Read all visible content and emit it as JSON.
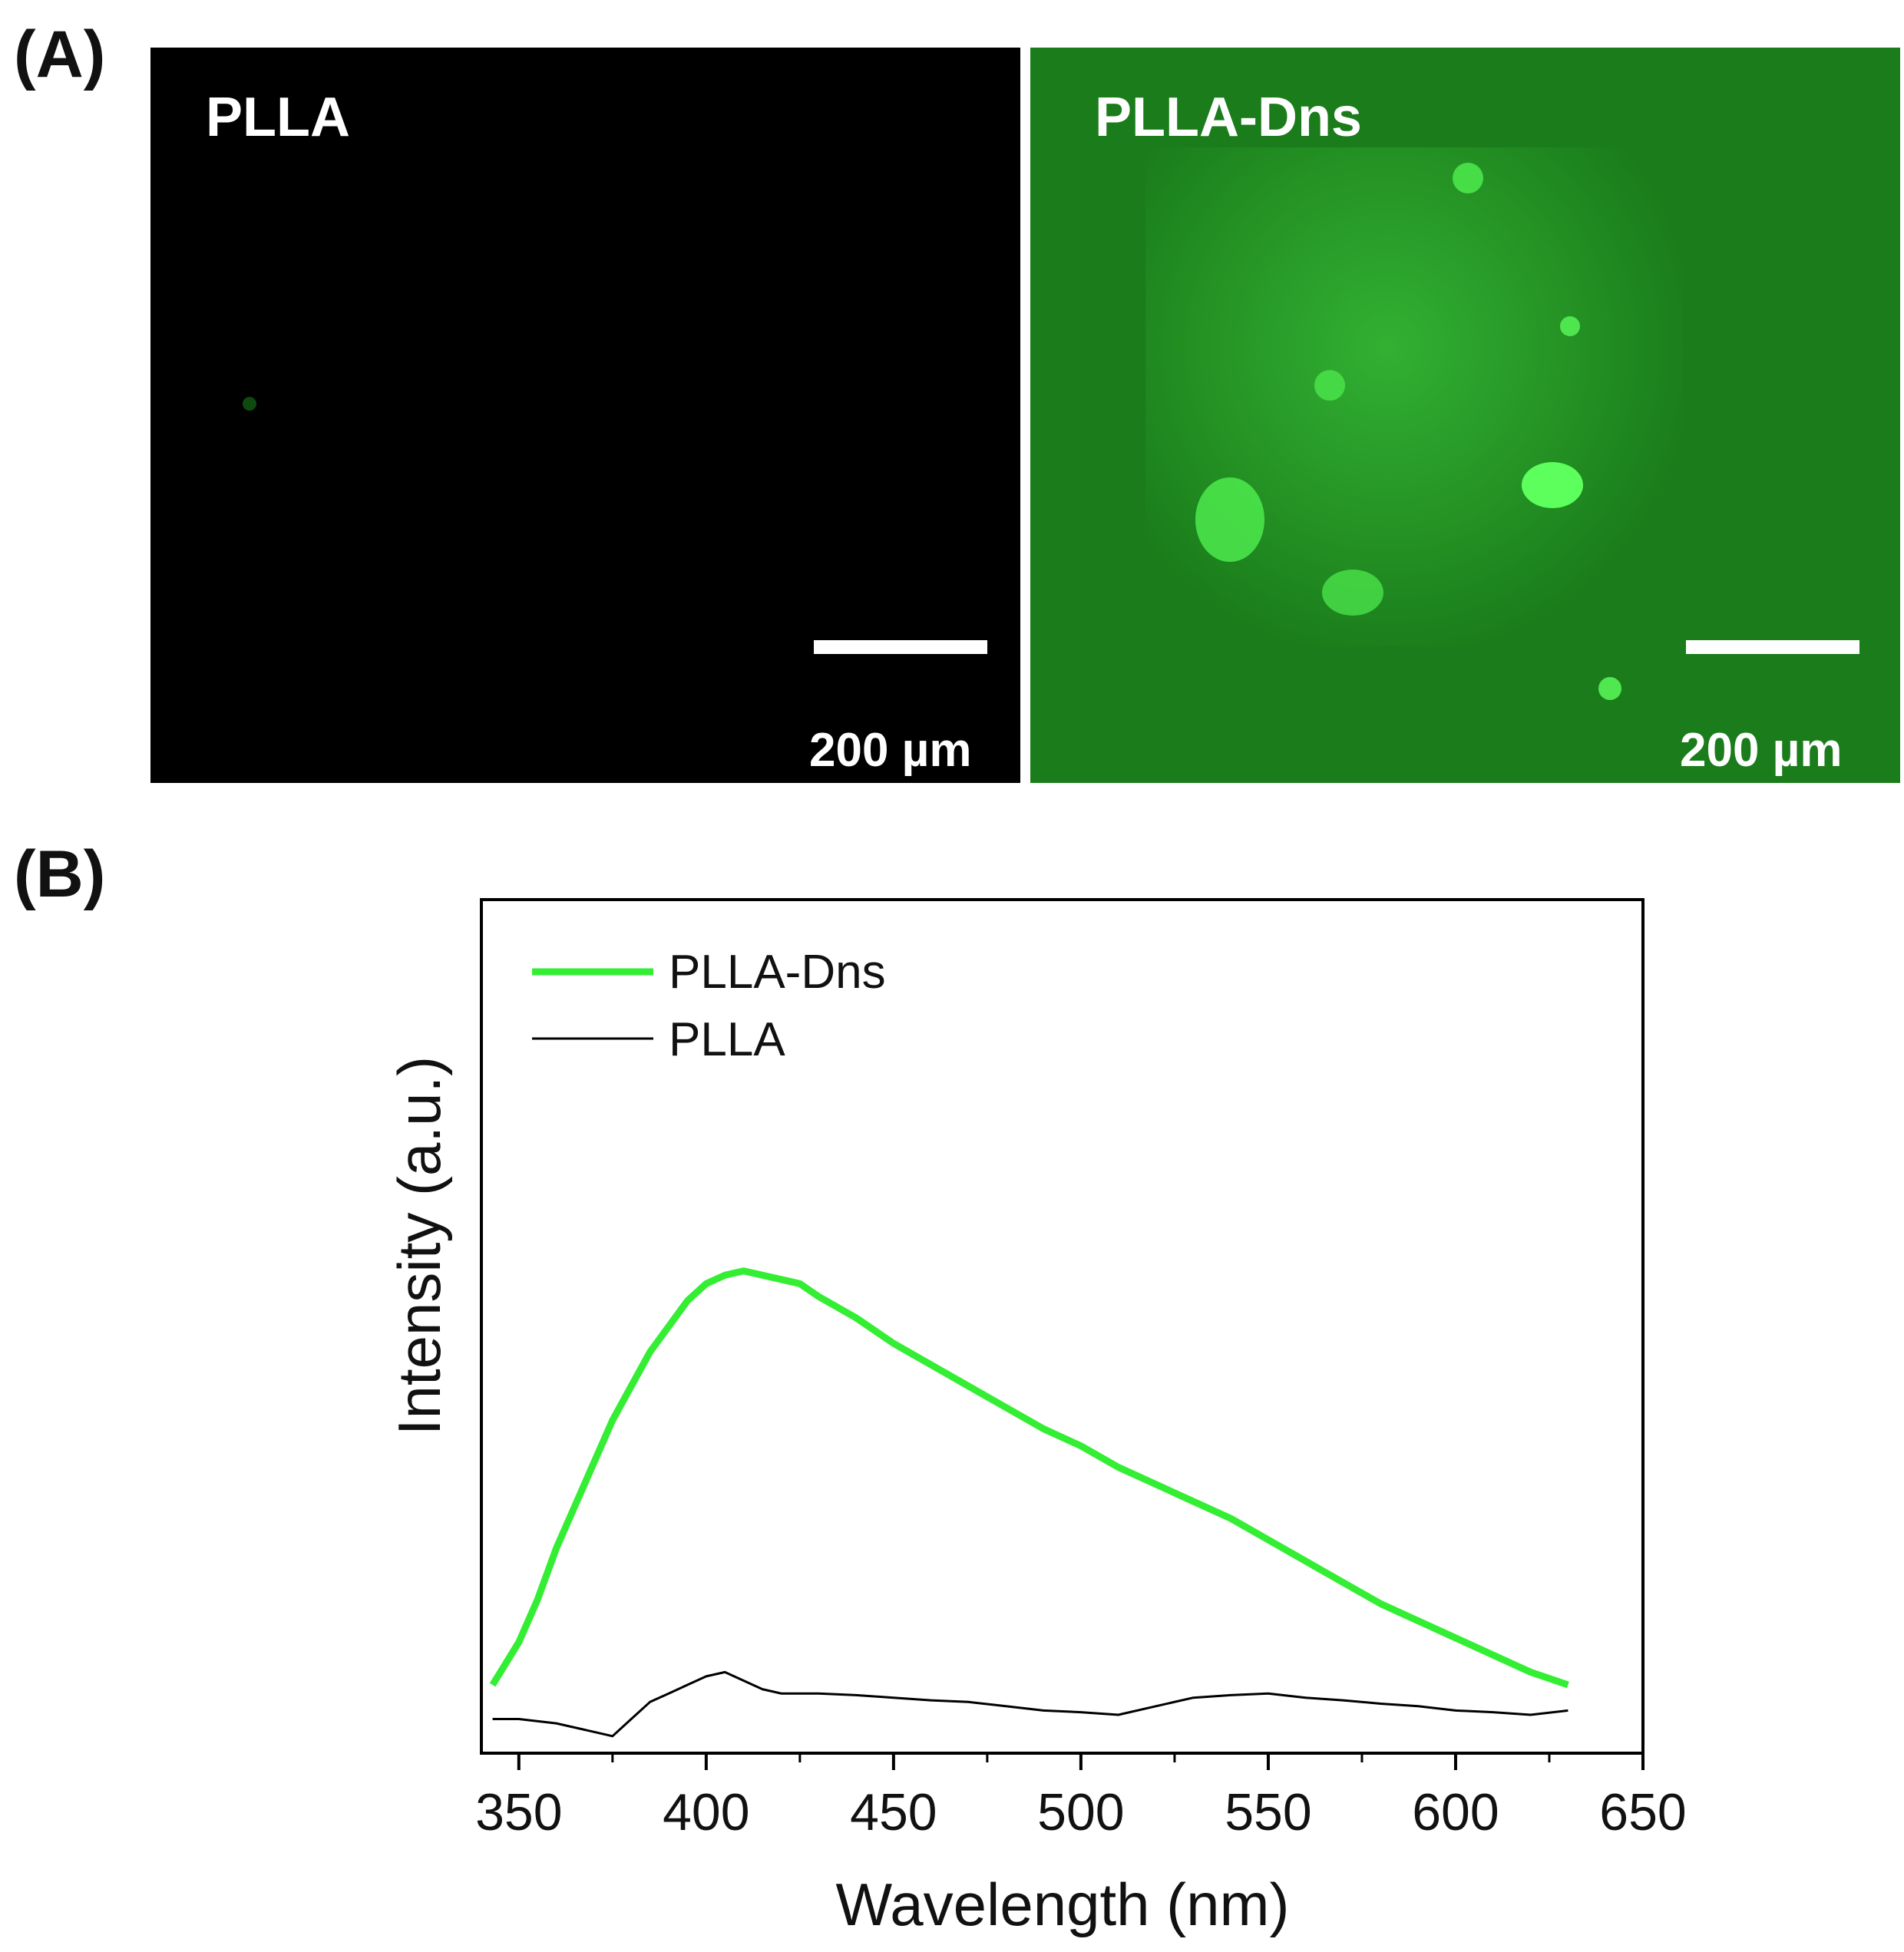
{
  "panels": {
    "a_label": "(A)",
    "b_label": "(B)"
  },
  "micrographs": [
    {
      "label": "PLLA",
      "scale_text": "200 µm",
      "background": "#000000"
    },
    {
      "label": "PLLA-Dns",
      "scale_text": "200 µm",
      "background": "#1a7c1a",
      "fluorescence": "#52f552"
    }
  ],
  "chart_data": {
    "type": "line",
    "xlabel": "Wavelength (nm)",
    "ylabel": "Intensity (a.u.)",
    "xlim": [
      340,
      650
    ],
    "xticks": [
      350,
      400,
      450,
      500,
      550,
      600,
      650
    ],
    "yticks_shown": false,
    "legend_position": "top-left",
    "series": [
      {
        "name": "PLLA-Dns",
        "color": "#33ee33",
        "x": [
          343,
          350,
          355,
          360,
          365,
          370,
          375,
          380,
          385,
          390,
          395,
          400,
          405,
          410,
          415,
          420,
          425,
          430,
          440,
          450,
          460,
          470,
          480,
          490,
          500,
          510,
          520,
          530,
          540,
          550,
          560,
          570,
          580,
          590,
          600,
          610,
          620,
          630
        ],
        "y": [
          0.08,
          0.13,
          0.18,
          0.24,
          0.29,
          0.34,
          0.39,
          0.43,
          0.47,
          0.5,
          0.53,
          0.55,
          0.56,
          0.565,
          0.56,
          0.555,
          0.55,
          0.535,
          0.51,
          0.48,
          0.455,
          0.43,
          0.405,
          0.38,
          0.36,
          0.335,
          0.315,
          0.295,
          0.275,
          0.25,
          0.225,
          0.2,
          0.175,
          0.155,
          0.135,
          0.115,
          0.095,
          0.08
        ]
      },
      {
        "name": "PLLA",
        "color": "#000000",
        "x": [
          343,
          350,
          360,
          370,
          375,
          380,
          385,
          390,
          395,
          400,
          405,
          410,
          415,
          420,
          430,
          440,
          450,
          460,
          470,
          480,
          490,
          500,
          510,
          520,
          530,
          540,
          550,
          560,
          570,
          580,
          590,
          600,
          610,
          620,
          630
        ],
        "y": [
          0.04,
          0.04,
          0.035,
          0.025,
          0.02,
          0.04,
          0.06,
          0.07,
          0.08,
          0.09,
          0.095,
          0.085,
          0.075,
          0.07,
          0.07,
          0.068,
          0.065,
          0.062,
          0.06,
          0.055,
          0.05,
          0.048,
          0.045,
          0.055,
          0.065,
          0.068,
          0.07,
          0.065,
          0.062,
          0.058,
          0.055,
          0.05,
          0.048,
          0.045,
          0.05
        ]
      }
    ]
  }
}
